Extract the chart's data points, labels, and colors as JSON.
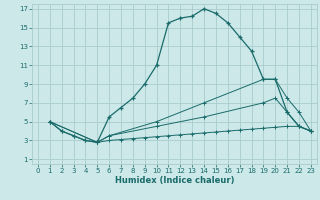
{
  "xlabel": "Humidex (Indice chaleur)",
  "bg_color": "#cce8e8",
  "grid_color": "#aacccc",
  "line_color": "#1a6b6b",
  "xlim": [
    -0.5,
    23.5
  ],
  "ylim": [
    0.5,
    17.5
  ],
  "xticks": [
    0,
    1,
    2,
    3,
    4,
    5,
    6,
    7,
    8,
    9,
    10,
    11,
    12,
    13,
    14,
    15,
    16,
    17,
    18,
    19,
    20,
    21,
    22,
    23
  ],
  "yticks": [
    1,
    3,
    5,
    7,
    9,
    11,
    13,
    15,
    17
  ],
  "line1_x": [
    1,
    2,
    3,
    4,
    5,
    6,
    7,
    8,
    9,
    10,
    11,
    12,
    13,
    14,
    15,
    16,
    17,
    18,
    19,
    20,
    21,
    22,
    23
  ],
  "line1_y": [
    5,
    4,
    3.5,
    3,
    2.8,
    5.5,
    6.5,
    7.5,
    9.0,
    11.0,
    15.5,
    16.0,
    16.2,
    17.0,
    16.5,
    15.5,
    14.0,
    12.5,
    9.5,
    9.5,
    6.0,
    4.5,
    4.0
  ],
  "line2_x": [
    1,
    2,
    3,
    4,
    5,
    6,
    7,
    8,
    9,
    10,
    11,
    12,
    13,
    14,
    15,
    16,
    17,
    18,
    19,
    20,
    21,
    22,
    23
  ],
  "line2_y": [
    5,
    4,
    3.5,
    3.0,
    2.8,
    3.0,
    3.1,
    3.2,
    3.3,
    3.4,
    3.5,
    3.6,
    3.7,
    3.8,
    3.9,
    4.0,
    4.1,
    4.2,
    4.3,
    4.4,
    4.5,
    4.5,
    4.0
  ],
  "line3_x": [
    1,
    5,
    6,
    10,
    14,
    19,
    20,
    21,
    22,
    23
  ],
  "line3_y": [
    5,
    2.8,
    3.5,
    5.0,
    7.0,
    9.5,
    9.5,
    7.5,
    6.0,
    4.0
  ],
  "line4_x": [
    1,
    5,
    6,
    10,
    14,
    19,
    20,
    21,
    22,
    23
  ],
  "line4_y": [
    5,
    2.8,
    3.5,
    4.5,
    5.5,
    7.0,
    7.5,
    6.0,
    4.5,
    4.0
  ]
}
